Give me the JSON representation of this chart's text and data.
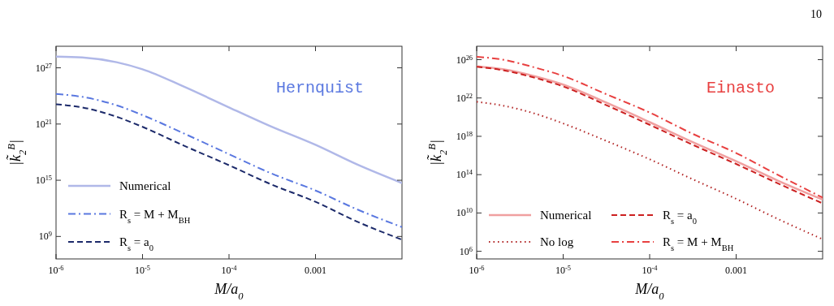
{
  "chart_data": [
    {
      "type": "line",
      "xlabel": "M/a$_{0}$",
      "ylabel": "|k̃$_{2}$$^{B}$|",
      "annotations": [
        "Hernquist"
      ],
      "log": "xy",
      "grid": false,
      "legend": "bottom left",
      "xlim": [
        1e-06,
        0.01
      ],
      "ylim": [
        4000000.0,
        2e+29
      ],
      "xticks": [
        {
          "value": 1e-06,
          "label": "10$^{-6}$"
        },
        {
          "value": 1e-05,
          "label": "10$^{-5}$"
        },
        {
          "value": 0.0001,
          "label": "10$^{-4}$"
        },
        0.001
      ],
      "yticks": [
        {
          "value": 1000000000.0,
          "label": "10$^{9}$"
        },
        {
          "value": 1000000000000000.0,
          "label": "10$^{15}$"
        },
        {
          "value": 1e+21,
          "label": "10$^{21}$"
        },
        {
          "value": 1e+27,
          "label": "10$^{27}$"
        }
      ],
      "x": [
        1e-06,
        2e-06,
        5e-06,
        1e-05,
        3e-05,
        0.0001,
        0.0003,
        0.001,
        0.003,
        0.01
      ],
      "series": [
        {
          "name": "Numerical",
          "color": "#b0b8e8",
          "line_style": "solid",
          "values": [
            1.6e+28,
            1.3e+28,
            4e+27,
            7e+26,
            1e+25,
            6e+22,
            6e+20,
            6e+18,
            5e+16,
            500000000000000.0
          ]
        },
        {
          "name": "R$_{s}$ = M + M$_{BH}$",
          "color": "#5a78e0",
          "line_style": "dashdot",
          "values": [
            1.6e+24,
            8e+23,
            1e+23,
            9e+21,
            1e+20,
            6e+17,
            6000000000000000.0,
            80000000000000.0,
            800000000000.0,
            10000000000.0
          ]
        },
        {
          "name": "R$_{s}$ = a$_{0}$",
          "color": "#1c2a6a",
          "line_style": "dashed",
          "values": [
            1.3e+23,
            6e+22,
            6e+21,
            5e+20,
            5e+18,
            4e+16,
            400000000000000.0,
            5000000000000.0,
            40000000000.0,
            450000000.0
          ]
        }
      ]
    },
    {
      "type": "line",
      "xlabel": "M/a$_{0}$",
      "ylabel": "|k̃$_{2}$$^{B}$|",
      "annotations": [
        "Einasto",
        "10"
      ],
      "log": "xy",
      "grid": false,
      "legend": "bottom left",
      "xlim": [
        1e-06,
        0.01
      ],
      "ylim": [
        160000.0,
        2.5e+27
      ],
      "xticks": [
        {
          "value": 1e-06,
          "label": "10$^{-6}$"
        },
        {
          "value": 1e-05,
          "label": "10$^{-5}$"
        },
        {
          "value": 0.0001,
          "label": "10$^{-4}$"
        },
        0.001
      ],
      "yticks": [
        {
          "value": 1000000.0,
          "label": "10$^{6}$"
        },
        {
          "value": 10000000000.0,
          "label": "10$^{10}$"
        },
        {
          "value": 100000000000000.0,
          "label": "10$^{14}$"
        },
        {
          "value": 1e+18,
          "label": "10$^{18}$"
        },
        {
          "value": 1e+22,
          "label": "10$^{22}$"
        },
        {
          "value": 1e+26,
          "label": "10$^{26}$"
        }
      ],
      "x": [
        1e-06,
        2e-06,
        5e-06,
        1e-05,
        3e-05,
        0.0001,
        0.0003,
        0.001,
        0.003,
        0.01
      ],
      "series": [
        {
          "name": "Numerical",
          "color": "#f0a0a0",
          "line_style": "solid",
          "values": [
            2e+25,
            1e+25,
            1.6e+24,
            2.5e+23,
            4e+21,
            3e+19,
            3e+17,
            2500000000000000.0,
            25000000000000.0,
            250000000000.0
          ]
        },
        {
          "name": "No log",
          "color": "#b02020",
          "line_style": "dotted",
          "values": [
            4e+21,
            1.6e+21,
            2e+20,
            2.2e+19,
            4e+17,
            4000000000000000.0,
            40000000000000.0,
            300000000000.0,
            2500000000.0,
            18000000.0
          ]
        },
        {
          "name": "R$_{s}$ = a$_{0}$",
          "color": "#cc2020",
          "line_style": "dashed",
          "values": [
            1.8e+25,
            8e+24,
            1.1e+24,
            1.6e+23,
            2.2e+21,
            1.6e+19,
            1.6e+17,
            1300000000000000.0,
            13000000000000.0,
            100000000000.0
          ]
        },
        {
          "name": "R$_{s}$ = M + M$_{BH}$",
          "color": "#e84040",
          "line_style": "dashdot",
          "values": [
            2e+26,
            1e+26,
            1.3e+25,
            2e+24,
            3e+22,
            3e+20,
            2.2e+18,
            1.8e+16,
            100000000000000.0,
            400000000000.0
          ]
        }
      ]
    }
  ]
}
